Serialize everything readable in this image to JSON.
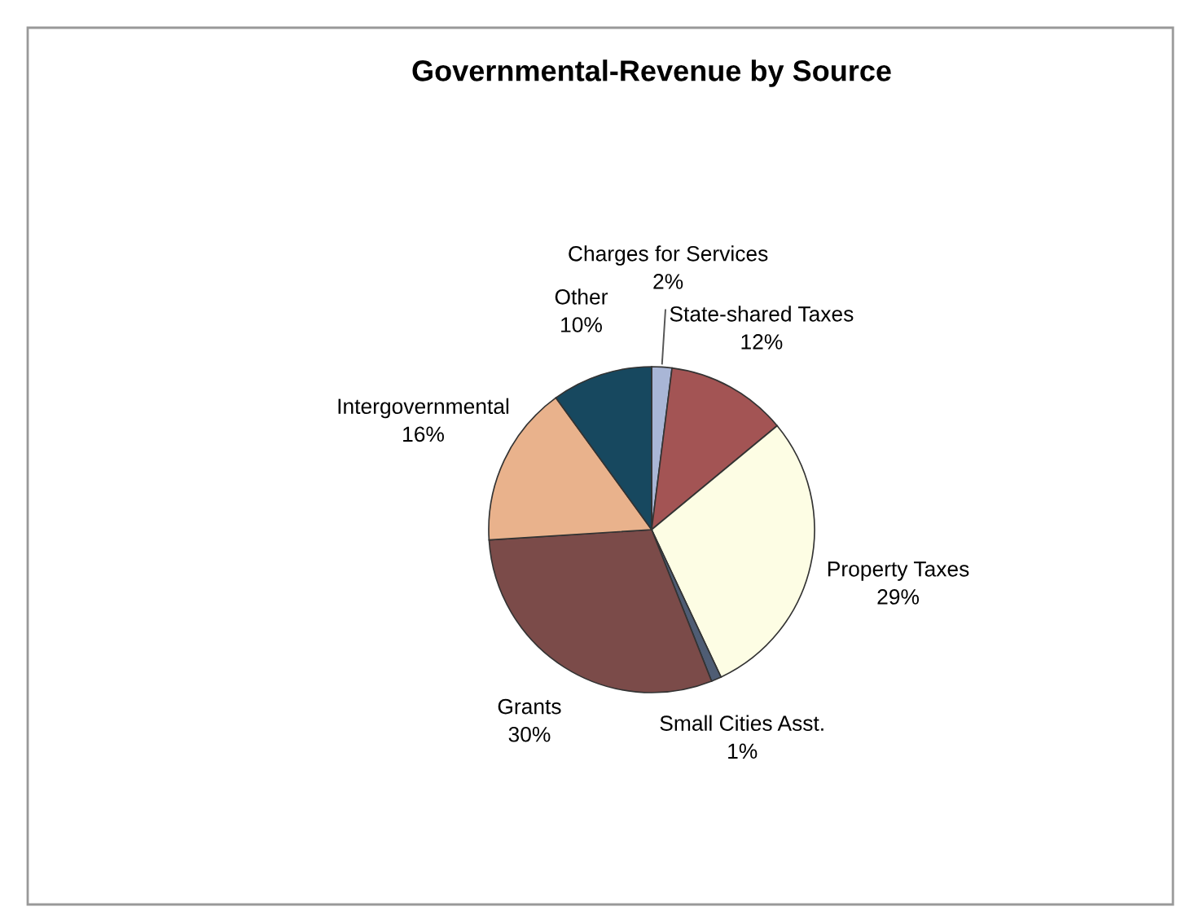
{
  "chart_data": {
    "type": "pie",
    "title": "Governmental-Revenue by Source",
    "categories": [
      "Charges for Services",
      "State-shared Taxes",
      "Property Taxes",
      "Small Cities Asst.",
      "Grants",
      "Intergovernmental",
      "Other"
    ],
    "values": [
      2,
      12,
      29,
      1,
      30,
      16,
      10
    ],
    "value_labels": [
      "2%",
      "12%",
      "29%",
      "1%",
      "30%",
      "16%",
      "10%"
    ],
    "colors": [
      "#a9b6d6",
      "#a35454",
      "#fdfde4",
      "#4f5d74",
      "#7b4b49",
      "#e9b28c",
      "#17485f"
    ],
    "legend": false
  }
}
